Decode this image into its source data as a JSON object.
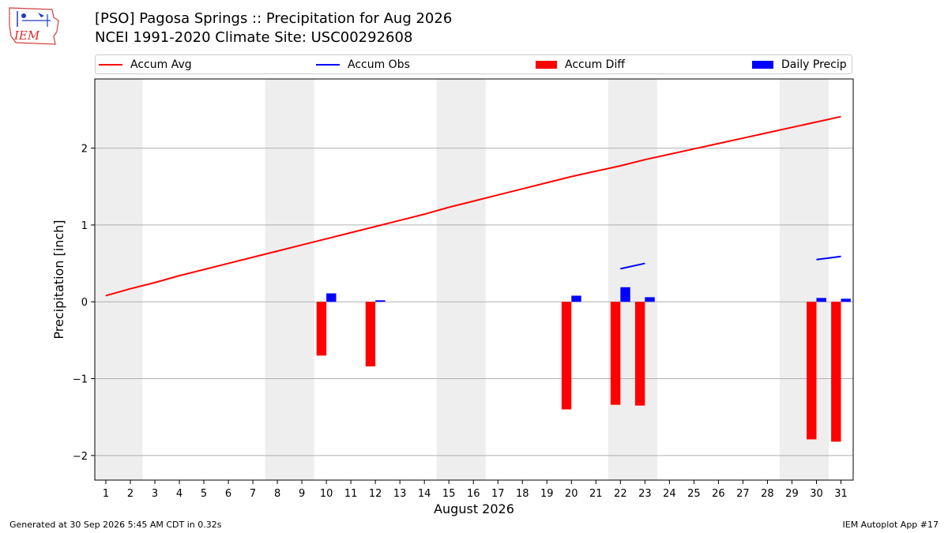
{
  "header": {
    "title_line1": "[PSO] Pagosa Springs :: Precipitation for Aug 2026",
    "title_line2": "NCEI 1991-2020 Climate Site: USC00292608"
  },
  "logo": {
    "text": "IEM"
  },
  "legend": {
    "accum_avg": "Accum Avg",
    "accum_obs": "Accum Obs",
    "accum_diff": "Accum Diff",
    "daily_precip": "Daily Precip"
  },
  "colors": {
    "red": "#ff0000",
    "blue": "#0000ff",
    "weekend_shade": "#eeeeee",
    "grid": "#b0b0b0"
  },
  "chart_data": {
    "type": "bar",
    "xlabel": "August 2026",
    "ylabel": "Precipitation [inch]",
    "ylim": [
      -2.32,
      2.9
    ],
    "xlim": [
      0.55,
      31.5
    ],
    "yticks": [
      -2,
      -1,
      0,
      1,
      2
    ],
    "ytick_labels": [
      "−2",
      "−1",
      "0",
      "1",
      "2"
    ],
    "days": [
      1,
      2,
      3,
      4,
      5,
      6,
      7,
      8,
      9,
      10,
      11,
      12,
      13,
      14,
      15,
      16,
      17,
      18,
      19,
      20,
      21,
      22,
      23,
      24,
      25,
      26,
      27,
      28,
      29,
      30,
      31
    ],
    "weekend_days": [
      1,
      2,
      8,
      9,
      15,
      16,
      22,
      23,
      29,
      30
    ],
    "grid": "horizontal",
    "series": [
      {
        "name": "Accum Avg",
        "kind": "line",
        "x": [
          1,
          2,
          3,
          4,
          5,
          6,
          7,
          8,
          9,
          10,
          11,
          12,
          13,
          14,
          15,
          16,
          17,
          18,
          19,
          20,
          21,
          22,
          23,
          24,
          25,
          26,
          27,
          28,
          29,
          30,
          31
        ],
        "values": [
          0.08,
          0.17,
          0.25,
          0.34,
          0.42,
          0.5,
          0.58,
          0.66,
          0.74,
          0.82,
          0.9,
          0.98,
          1.06,
          1.14,
          1.23,
          1.31,
          1.39,
          1.47,
          1.55,
          1.63,
          1.7,
          1.77,
          1.85,
          1.92,
          1.99,
          2.06,
          2.13,
          2.2,
          2.27,
          2.34,
          2.41
        ]
      },
      {
        "name": "Accum Obs",
        "kind": "line_segments",
        "segments": [
          {
            "x": [
              22,
              23
            ],
            "values": [
              0.43,
              0.5
            ]
          },
          {
            "x": [
              30,
              31
            ],
            "values": [
              0.55,
              0.59
            ]
          }
        ]
      },
      {
        "name": "Accum Diff",
        "kind": "bar",
        "x": [
          10,
          12,
          20,
          22,
          23,
          30,
          31
        ],
        "values": [
          -0.7,
          -0.84,
          -1.4,
          -1.34,
          -1.35,
          -1.79,
          -1.82
        ]
      },
      {
        "name": "Daily Precip",
        "kind": "bar",
        "x": [
          10,
          12,
          20,
          22,
          23,
          30,
          31
        ],
        "values": [
          0.11,
          0.02,
          0.08,
          0.19,
          0.06,
          0.05,
          0.04
        ]
      }
    ]
  },
  "footer": {
    "left": "Generated at 30 Sep 2026 5:45 AM CDT in 0.32s",
    "right": "IEM Autoplot App #17"
  }
}
